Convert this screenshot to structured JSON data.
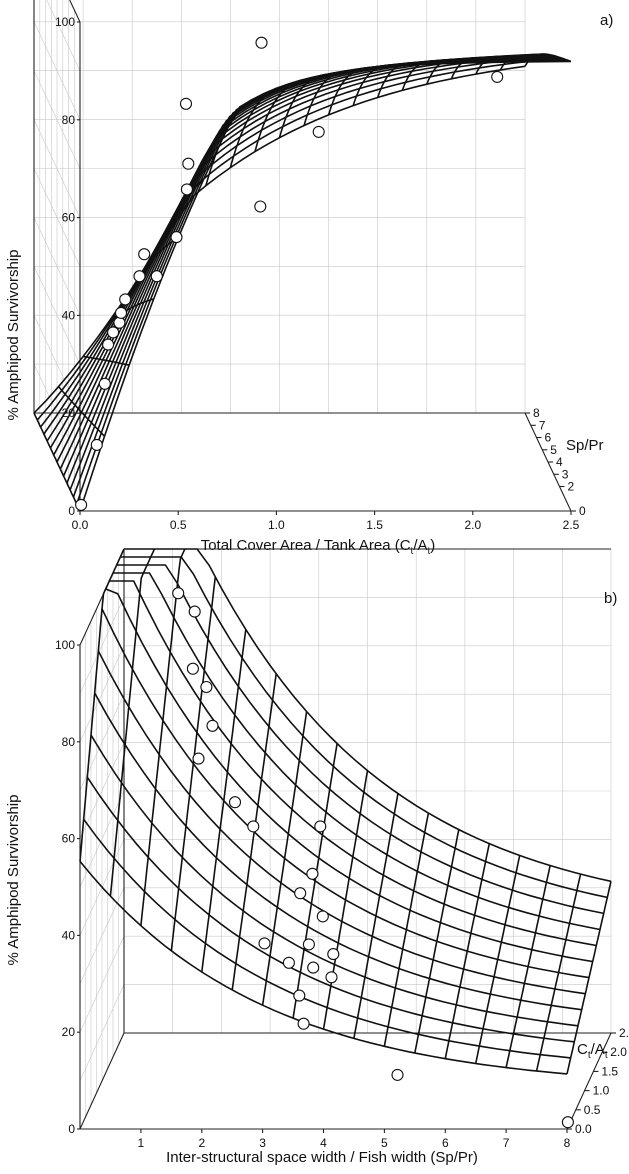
{
  "chart_data": [
    {
      "type": "scatter",
      "subtype": "3d-surface-with-points",
      "panel_label": "a)",
      "xlabel": "Total Cover Area / Tank Area (C",
      "xlabel_sub": "t",
      "xlabel_mid": "/A",
      "xlabel_sub2": "t",
      "xlabel_end": ")",
      "ylabel": "% Amphipod Survivorship",
      "zlabel": "Sp/Pr",
      "x_ticks": [
        "0.0",
        "0.5",
        "1.0",
        "1.5",
        "2.0",
        "2.5"
      ],
      "y_ticks": [
        "0",
        "20",
        "40",
        "60",
        "80",
        "100"
      ],
      "z_ticks": [
        "0",
        "2",
        "3",
        "4",
        "5",
        "6",
        "7",
        "8"
      ],
      "xlim": [
        0,
        2.5
      ],
      "ylim": [
        0,
        100
      ],
      "zlim": [
        0,
        8
      ],
      "points": [
        {
          "x": 0.02,
          "z": 0.5,
          "y": 0
        },
        {
          "x": 0.15,
          "z": 2.2,
          "y": 8
        },
        {
          "x": 0.22,
          "z": 3.2,
          "y": 18
        },
        {
          "x": 0.26,
          "z": 4.0,
          "y": 24
        },
        {
          "x": 0.28,
          "z": 3.8,
          "y": 27
        },
        {
          "x": 0.3,
          "z": 3.4,
          "y": 30
        },
        {
          "x": 0.32,
          "z": 3.8,
          "y": 31
        },
        {
          "x": 0.35,
          "z": 4.1,
          "y": 33
        },
        {
          "x": 0.42,
          "z": 4.0,
          "y": 38
        },
        {
          "x": 0.45,
          "z": 4.2,
          "y": 42
        },
        {
          "x": 0.52,
          "z": 4.4,
          "y": 37
        },
        {
          "x": 0.62,
          "z": 4.4,
          "y": 45
        },
        {
          "x": 0.67,
          "z": 4.3,
          "y": 55
        },
        {
          "x": 0.68,
          "z": 4.4,
          "y": 60
        },
        {
          "x": 0.66,
          "z": 4.1,
          "y": 73
        },
        {
          "x": 1.05,
          "z": 4.5,
          "y": 51
        },
        {
          "x": 1.35,
          "z": 4.6,
          "y": 66
        },
        {
          "x": 1.05,
          "z": 4.3,
          "y": 85
        },
        {
          "x": 1.4,
          "z": 4.6,
          "y": 95
        },
        {
          "x": 1.4,
          "z": 4.6,
          "y": 98
        },
        {
          "x": 2.25,
          "z": 4.3,
          "y": 78
        }
      ]
    },
    {
      "type": "scatter",
      "subtype": "3d-surface-with-points",
      "panel_label": "b)",
      "xlabel": "Inter-structural space width / Fish width (Sp/Pr)",
      "ylabel": "% Amphipod Survivorship",
      "zlabel": "C",
      "zlabel_sub": "t",
      "zlabel_mid": "/A",
      "zlabel_sub2": "t",
      "x_ticks": [
        "1",
        "2",
        "3",
        "4",
        "5",
        "6",
        "7",
        "8"
      ],
      "y_ticks": [
        "0",
        "20",
        "40",
        "60",
        "80",
        "100"
      ],
      "z_ticks": [
        "0.0",
        "0.5",
        "1.0",
        "1.5",
        "2.0",
        "2.5"
      ],
      "xlim": [
        0,
        8
      ],
      "ylim": [
        0,
        100
      ],
      "zlim": [
        0,
        2.5
      ],
      "points": [
        {
          "x": 1.15,
          "z": 1.6,
          "y": 98
        },
        {
          "x": 1.45,
          "z": 1.5,
          "y": 95
        },
        {
          "x": 1.45,
          "z": 1.4,
          "y": 84
        },
        {
          "x": 1.7,
          "z": 1.3,
          "y": 81
        },
        {
          "x": 1.8,
          "z": 1.3,
          "y": 73
        },
        {
          "x": 1.6,
          "z": 1.2,
          "y": 67
        },
        {
          "x": 2.2,
          "z": 1.2,
          "y": 58
        },
        {
          "x": 2.5,
          "z": 1.2,
          "y": 53
        },
        {
          "x": 3.6,
          "z": 1.2,
          "y": 53
        },
        {
          "x": 3.5,
          "z": 1.1,
          "y": 44
        },
        {
          "x": 3.3,
          "z": 1.1,
          "y": 40
        },
        {
          "x": 3.7,
          "z": 1.0,
          "y": 36
        },
        {
          "x": 2.8,
          "z": 0.8,
          "y": 32
        },
        {
          "x": 3.5,
          "z": 0.9,
          "y": 31
        },
        {
          "x": 3.9,
          "z": 0.9,
          "y": 29
        },
        {
          "x": 3.2,
          "z": 0.8,
          "y": 28
        },
        {
          "x": 3.6,
          "z": 0.8,
          "y": 27
        },
        {
          "x": 3.9,
          "z": 0.8,
          "y": 25
        },
        {
          "x": 3.4,
          "z": 0.7,
          "y": 22
        },
        {
          "x": 3.5,
          "z": 0.6,
          "y": 17
        },
        {
          "x": 5.1,
          "z": 0.4,
          "y": 8
        },
        {
          "x": 8.0,
          "z": 0.05,
          "y": 1
        }
      ]
    }
  ]
}
